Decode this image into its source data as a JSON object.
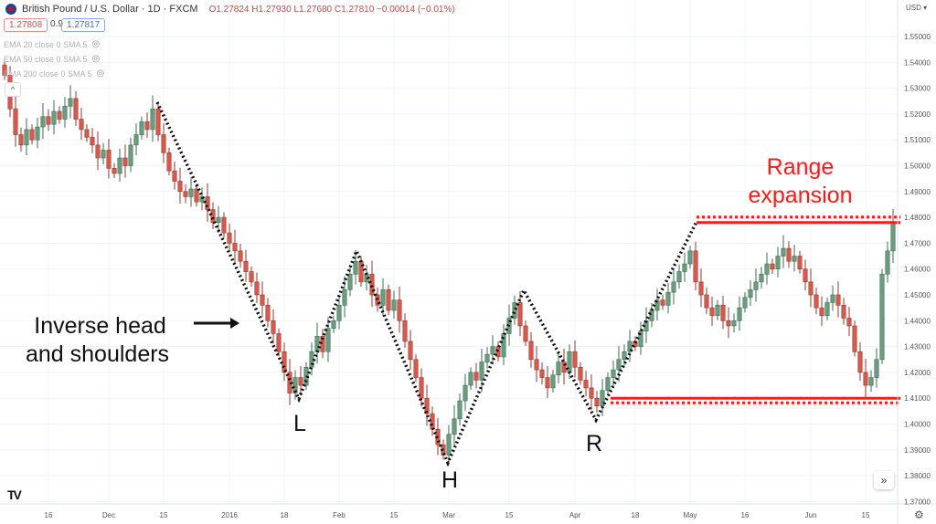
{
  "header": {
    "symbol": "British Pound / U.S. Dollar · 1D · FXCM",
    "ohlc": "O1.27824 H1.27930 L1.27680 C1.27810 −0.00014 (−0.01%)",
    "bid": "1.27808",
    "spread": "0.9",
    "ask": "1.27817",
    "collapse_icon": "chevron-up-icon"
  },
  "indicators": [
    {
      "label": "EMA 20 close 0 SMA 5",
      "icon": "eye-crossed-icon"
    },
    {
      "label": "EMA 50 close 0 SMA 5",
      "icon": "eye-crossed-icon"
    },
    {
      "label": "EMA 200 close 0 SMA 5",
      "icon": "eye-crossed-icon"
    }
  ],
  "currency": "USD ▾",
  "scroll_button": "»",
  "logo": "TV",
  "settings_icon": "gear-icon",
  "annotations": {
    "pattern_line1": "Inverse head",
    "pattern_line2": "and shoulders",
    "range_line1": "Range",
    "range_line2": "expansion",
    "left_shoulder": "L",
    "head": "H",
    "right_shoulder": "R"
  },
  "colors": {
    "up": "#6a9e7f",
    "up_border": "#3d6b52",
    "down": "#d9594c",
    "down_border": "#8f3a30",
    "annotation_red": "#ff1a1a",
    "grid": "#f0f3fa"
  },
  "chart_data": {
    "type": "candlestick",
    "title": "",
    "xlabel": "",
    "ylabel": "",
    "ylim": [
      1.37,
      1.555
    ],
    "grid": true,
    "y_ticks": [
      "1.55000",
      "1.54000",
      "1.53000",
      "1.52000",
      "1.51000",
      "1.50000",
      "1.49000",
      "1.48000",
      "1.47000",
      "1.46000",
      "1.45000",
      "1.44000",
      "1.43000",
      "1.42000",
      "1.41000",
      "1.40000",
      "1.39000",
      "1.38000",
      "1.37000"
    ],
    "x_ticks": [
      {
        "label": "16",
        "index": 8
      },
      {
        "label": "Dec",
        "index": 19
      },
      {
        "label": "15",
        "index": 29
      },
      {
        "label": "2016",
        "index": 41
      },
      {
        "label": "18",
        "index": 51
      },
      {
        "label": "Feb",
        "index": 61
      },
      {
        "label": "15",
        "index": 71
      },
      {
        "label": "Mar",
        "index": 81
      },
      {
        "label": "15",
        "index": 92
      },
      {
        "label": "Apr",
        "index": 104
      },
      {
        "label": "18",
        "index": 115
      },
      {
        "label": "May",
        "index": 125
      },
      {
        "label": "16",
        "index": 135
      },
      {
        "label": "Jun",
        "index": 147
      },
      {
        "label": "15",
        "index": 157
      }
    ],
    "close": [
      1.535,
      1.522,
      1.512,
      1.508,
      1.514,
      1.51,
      1.515,
      1.519,
      1.516,
      1.521,
      1.518,
      1.523,
      1.526,
      1.518,
      1.514,
      1.511,
      1.508,
      1.503,
      1.506,
      1.499,
      1.497,
      1.503,
      1.5,
      1.508,
      1.512,
      1.517,
      1.514,
      1.522,
      1.512,
      1.505,
      1.498,
      1.494,
      1.49,
      1.488,
      1.491,
      1.486,
      1.488,
      1.483,
      1.478,
      1.48,
      1.474,
      1.47,
      1.467,
      1.463,
      1.459,
      1.455,
      1.45,
      1.446,
      1.44,
      1.435,
      1.428,
      1.42,
      1.412,
      1.418,
      1.415,
      1.422,
      1.428,
      1.434,
      1.428,
      1.437,
      1.44,
      1.446,
      1.452,
      1.458,
      1.463,
      1.455,
      1.458,
      1.45,
      1.446,
      1.452,
      1.444,
      1.448,
      1.44,
      1.432,
      1.425,
      1.418,
      1.41,
      1.404,
      1.398,
      1.392,
      1.388,
      1.396,
      1.402,
      1.409,
      1.415,
      1.42,
      1.417,
      1.424,
      1.427,
      1.43,
      1.426,
      1.435,
      1.441,
      1.447,
      1.438,
      1.432,
      1.425,
      1.421,
      1.418,
      1.414,
      1.419,
      1.424,
      1.42,
      1.428,
      1.422,
      1.417,
      1.414,
      1.41,
      1.407,
      1.413,
      1.418,
      1.421,
      1.425,
      1.428,
      1.432,
      1.43,
      1.436,
      1.44,
      1.444,
      1.448,
      1.446,
      1.451,
      1.455,
      1.459,
      1.462,
      1.467,
      1.455,
      1.45,
      1.445,
      1.442,
      1.446,
      1.44,
      1.438,
      1.44,
      1.445,
      1.449,
      1.452,
      1.455,
      1.458,
      1.462,
      1.46,
      1.465,
      1.468,
      1.463,
      1.465,
      1.46,
      1.455,
      1.45,
      1.445,
      1.442,
      1.447,
      1.45,
      1.446,
      1.441,
      1.438,
      1.428,
      1.42,
      1.415,
      1.418,
      1.425,
      1.458,
      1.467,
      1.478
    ],
    "range_levels": {
      "top": 1.478,
      "bottom": 1.41
    }
  }
}
